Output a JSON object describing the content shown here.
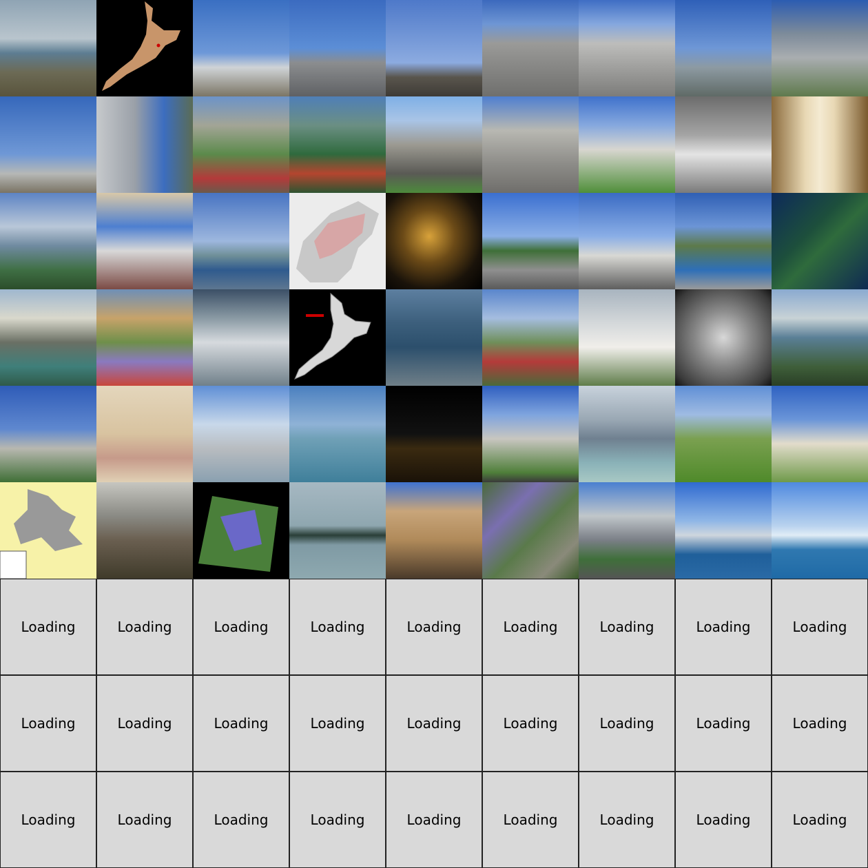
{
  "gallery": {
    "tiles": [
      {
        "subject": "city-panorama",
        "bg": "linear-gradient(180deg,#8fa4b4 0%,#b9c5cd 40%,#5d7d92 55%,#6c6a55 75%,#59543c 100%)"
      },
      {
        "subject": "nz-map-black",
        "bg": "#000000",
        "overlay": "nzmap"
      },
      {
        "subject": "street-sky-balloon",
        "bg": "linear-gradient(180deg,#3a6fc2 0%,#6d98d8 55%,#cfd3d6 70%,#7b7565 100%)"
      },
      {
        "subject": "bronze-statue",
        "bg": "linear-gradient(180deg,#3b6bc0 0%,#5c8ed6 50%,#8b8d8f 65%,#5f6164 100%)"
      },
      {
        "subject": "metal-sculptures",
        "bg": "linear-gradient(180deg,#4e79c9 0%,#8cabe0 65%,#59554d 80%,#3e3b36 100%)"
      },
      {
        "subject": "beehive-building",
        "bg": "linear-gradient(180deg,#3c69bd 0%,#6e96d4 25%,#9a9a98 45%,#6f6f6d 100%)"
      },
      {
        "subject": "beehive-building-2",
        "bg": "linear-gradient(180deg,#3f6ec4 0%,#85a7de 25%,#bdbdbb 45%,#7c7c7a 100%)"
      },
      {
        "subject": "flags-waterfront",
        "bg": "linear-gradient(180deg,#2f60b8 0%,#6e97d6 50%,#8d9aa2 70%,#5f6a66 100%)"
      },
      {
        "subject": "office-building",
        "bg": "linear-gradient(180deg,#2c5cb1 0%,#7d8b9a 35%,#a9adb0 60%,#5f7a4d 100%)"
      },
      {
        "subject": "windmills-harbour",
        "bg": "linear-gradient(180deg,#3668bb 0%,#6f98d6 60%,#b6b8b6 80%,#7a7364 100%)"
      },
      {
        "subject": "tower-buildings",
        "bg": "linear-gradient(90deg,#c6c9cc 0%,#9aa0a8 40%,#3c6dbf 70%,#5a6c55 100%)"
      },
      {
        "subject": "cable-car-park",
        "bg": "linear-gradient(180deg,#6c93c8 0%,#a3a596 30%,#5b8a4b 60%,#b33a3a 85%,#6a5a4b 100%)"
      },
      {
        "subject": "cable-car-forest",
        "bg": "linear-gradient(180deg,#4f7fb7 0%,#6b8f83 30%,#2f6a3d 60%,#b4452f 80%,#2e5431 100%)"
      },
      {
        "subject": "beehive-front",
        "bg": "linear-gradient(180deg,#7fb0e6 0%,#a9c4e6 25%,#9c9a92 50%,#5a5a55 80%,#4d8a3c 100%)"
      },
      {
        "subject": "parliament-stone",
        "bg": "linear-gradient(180deg,#4f7fd0 0%,#b8b8b2 35%,#8d8c88 70%,#6f6e6b 100%)"
      },
      {
        "subject": "parliament-library",
        "bg": "linear-gradient(180deg,#3f72cc 0%,#86a8de 30%,#d8d6d0 55%,#4f8f3a 100%)"
      },
      {
        "subject": "bw-railing",
        "bg": "linear-gradient(180deg,#6c6c6c 0%,#a4a4a4 40%,#e4e4e4 60%,#7a7a7a 100%)"
      },
      {
        "subject": "cathedral-interior",
        "bg": "linear-gradient(90deg,#8a6a3c 0%,#e8d8b4 35%,#f4ead2 50%,#e8d8b4 65%,#7a5a2e 100%)"
      },
      {
        "subject": "harbour-lookout",
        "bg": "linear-gradient(180deg,#5d84c4 0%,#b9c7d8 35%,#6f8aa0 55%,#3f6f44 80%,#2b4d2a 100%)"
      },
      {
        "subject": "waterfront-canopy",
        "bg": "linear-gradient(180deg,#d8c8a8 0%,#4d7fd0 35%,#d8d8d8 60%,#7b4a44 100%)"
      },
      {
        "subject": "harbour-pier",
        "bg": "linear-gradient(180deg,#4874c2 0%,#9db7de 50%,#6f8f98 65%,#2f5a8e 80%,#5d7690 100%)"
      },
      {
        "subject": "wellington-region-map",
        "bg": "#ececec",
        "overlay": "regionmap"
      },
      {
        "subject": "night-lights",
        "bg": "radial-gradient(ellipse at 45% 45%,#d8a23a 0%,#6b4a17 35%,#1a130a 70%,#000 100%)"
      },
      {
        "subject": "norfolk-pine-street",
        "bg": "linear-gradient(180deg,#3b6fd0 0%,#8aaee6 45%,#3f6f38 60%,#8f8f8f 80%,#5a5a5a 100%)"
      },
      {
        "subject": "oriental-parade",
        "bg": "linear-gradient(180deg,#3a6bc4 0%,#8aaee6 45%,#d8d8d4 65%,#5e5e5e 100%)"
      },
      {
        "subject": "oriental-bay",
        "bg": "linear-gradient(180deg,#2f5fb4 0%,#6c95d6 35%,#5d7a4a 55%,#2e6fb8 80%,#9a9a9a 100%)"
      },
      {
        "subject": "satellite-wellington",
        "bg": "linear-gradient(135deg,#0d2a5a 0%,#1d4f3c 40%,#2f6b3c 55%,#0f2a52 100%)"
      },
      {
        "subject": "painted-harbour",
        "bg": "linear-gradient(180deg,#9fb7cf 0%,#d9d8cc 30%,#6a6f64 55%,#3f7f7a 80%,#2f5a4a 100%)"
      },
      {
        "subject": "collage",
        "bg": "linear-gradient(180deg,#6f8fb6 0%,#c7a36a 30%,#6e8f4a 55%,#8a7ac0 75%,#c9463a 100%)"
      },
      {
        "subject": "aerial-forest",
        "bg": "linear-gradient(180deg,#3b4f66 0%,#8a9aa4 30%,#d6dade 55%,#70808a 100%)"
      },
      {
        "subject": "nz-map-grey",
        "bg": "#000000",
        "overlay": "nzmap2"
      },
      {
        "subject": "aerial-harbour",
        "bg": "linear-gradient(180deg,#5d7fa0 0%,#3c5f7c 35%,#2c4f6c 60%,#6f7f88 100%)"
      },
      {
        "subject": "cable-car-red",
        "bg": "linear-gradient(180deg,#5a86cc 0%,#a5bddf 30%,#6f8f5a 55%,#b43a3a 75%,#4a6a3a 100%)"
      },
      {
        "subject": "white-tower-building",
        "bg": "linear-gradient(180deg,#a8b4bf 0%,#d4d8da 35%,#f0eeea 60%,#5f7d4a 100%)"
      },
      {
        "subject": "bw-aerial-building",
        "bg": "radial-gradient(ellipse at 50% 50%,#d8d8d8 0%,#8a8a8a 40%,#3a3a3a 85%,#111 100%)"
      },
      {
        "subject": "hillside-town",
        "bg": "linear-gradient(180deg,#8aaad0 0%,#c8d2d6 30%,#5a7f96 50%,#3f5f3a 80%,#2a3f26 100%)"
      },
      {
        "subject": "clock-tower",
        "bg": "linear-gradient(180deg,#2f5cb8 0%,#5f88cf 45%,#b8b8b0 65%,#3f6f36 100%)"
      },
      {
        "subject": "old-map",
        "bg": "linear-gradient(180deg,#e4d6bc 0%,#d8c3a0 50%,#c69a8a 75%,#e0d0b4 100%)"
      },
      {
        "subject": "marina-skytower",
        "bg": "linear-gradient(180deg,#5f8fd6 0%,#c8d8ea 40%,#b8bcc0 65%,#8aa0b0 100%)"
      },
      {
        "subject": "harbour-bridge",
        "bg": "linear-gradient(180deg,#4a7fbf 0%,#8fb2d6 40%,#6fa0b6 55%,#3f7f9a 100%)"
      },
      {
        "subject": "night-bridge",
        "bg": "linear-gradient(180deg,#000 0%,#111 50%,#3a2a10 65%,#1a1208 100%)"
      },
      {
        "subject": "ornate-building",
        "bg": "linear-gradient(180deg,#2f5fc0 0%,#7fa4de 30%,#c8c6c0 55%,#4f7f3a 90%,#3a3a3a 100%)"
      },
      {
        "subject": "aerial-city-haze",
        "bg": "linear-gradient(180deg,#c8d2dc 0%,#9aa8b4 35%,#6f8090 55%,#8ab2b8 80%,#a8c8c4 100%)"
      },
      {
        "subject": "green-volcano",
        "bg": "linear-gradient(180deg,#5f8fd6 0%,#9fbbe2 30%,#7aa050 55%,#4f8a2a 100%)"
      },
      {
        "subject": "war-memorial-museum",
        "bg": "linear-gradient(180deg,#2f62c2 0%,#6a95d8 35%,#e2dccb 60%,#6f9a4a 100%)"
      },
      {
        "subject": "yellow-map",
        "bg": "#f7f2a8",
        "overlay": "yellowmap"
      },
      {
        "subject": "city-hills",
        "bg": "linear-gradient(180deg,#c6c6c0 0%,#8a8a84 35%,#6a5f50 60%,#3f3a2a 100%)"
      },
      {
        "subject": "satellite-tilted",
        "bg": "#000000",
        "overlay": "sat"
      },
      {
        "subject": "island-cone",
        "bg": "linear-gradient(180deg,#a6b8c2 0%,#8fa7b0 45%,#2a3f38 55%,#7f9aa4 65%,#8ea9b0 100%)"
      },
      {
        "subject": "civic-theatre",
        "bg": "linear-gradient(180deg,#3f72d0 0%,#c8a57a 30%,#b08a5a 60%,#4a3a2a 100%)"
      },
      {
        "subject": "satellite-auckland",
        "bg": "linear-gradient(135deg,#4a6a3a 0%,#7a6fb0 30%,#5a7a4a 55%,#8a8a7a 80%,#3a5a2a 100%)"
      },
      {
        "subject": "modern-building-street",
        "bg": "linear-gradient(180deg,#4a7fd0 0%,#c0c6ca 35%,#7a7f86 60%,#3f6f3a 80%,#555 100%)"
      },
      {
        "subject": "skyline-sailboat",
        "bg": "linear-gradient(180deg,#2f6ad0 0%,#8fb6e6 40%,#cfd6de 55%,#1f5f9a 75%,#2a6aa6 100%)"
      },
      {
        "subject": "skyline-distant",
        "bg": "linear-gradient(180deg,#4f8ae0 0%,#b8d2ee 45%,#e0ecf6 55%,#2f78b0 70%,#1f6aa6 100%)"
      }
    ],
    "placeholder_label": "Loading",
    "placeholder_count": 27
  }
}
